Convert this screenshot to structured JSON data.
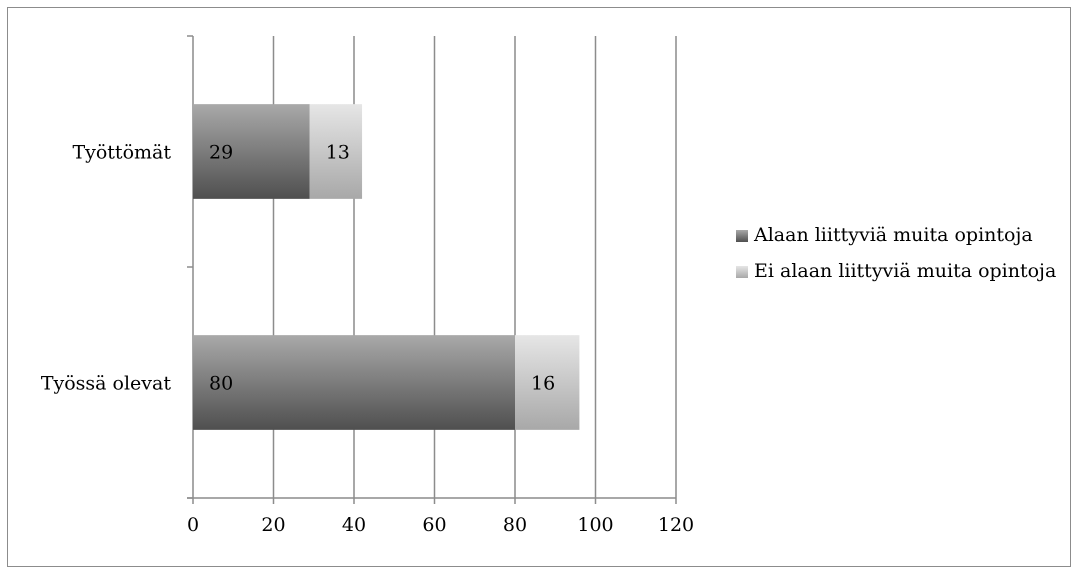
{
  "chart_data": {
    "type": "bar",
    "orientation": "horizontal",
    "stacked": true,
    "categories": [
      "Työttömät",
      "Työssä olevat"
    ],
    "series": [
      {
        "name": "Alaan liittyviä muita opintoja",
        "values": [
          29,
          80
        ],
        "color": "#7a7a7a"
      },
      {
        "name": "Ei alaan liittyviä muita opintoja",
        "values": [
          13,
          16
        ],
        "color": "#c8c8c8"
      }
    ],
    "xlim": [
      0,
      120
    ],
    "xticks": [
      "0",
      "20",
      "40",
      "60",
      "80",
      "100",
      "120"
    ],
    "grid": true,
    "legend_position": "right",
    "title": "",
    "xlabel": "",
    "ylabel": ""
  }
}
